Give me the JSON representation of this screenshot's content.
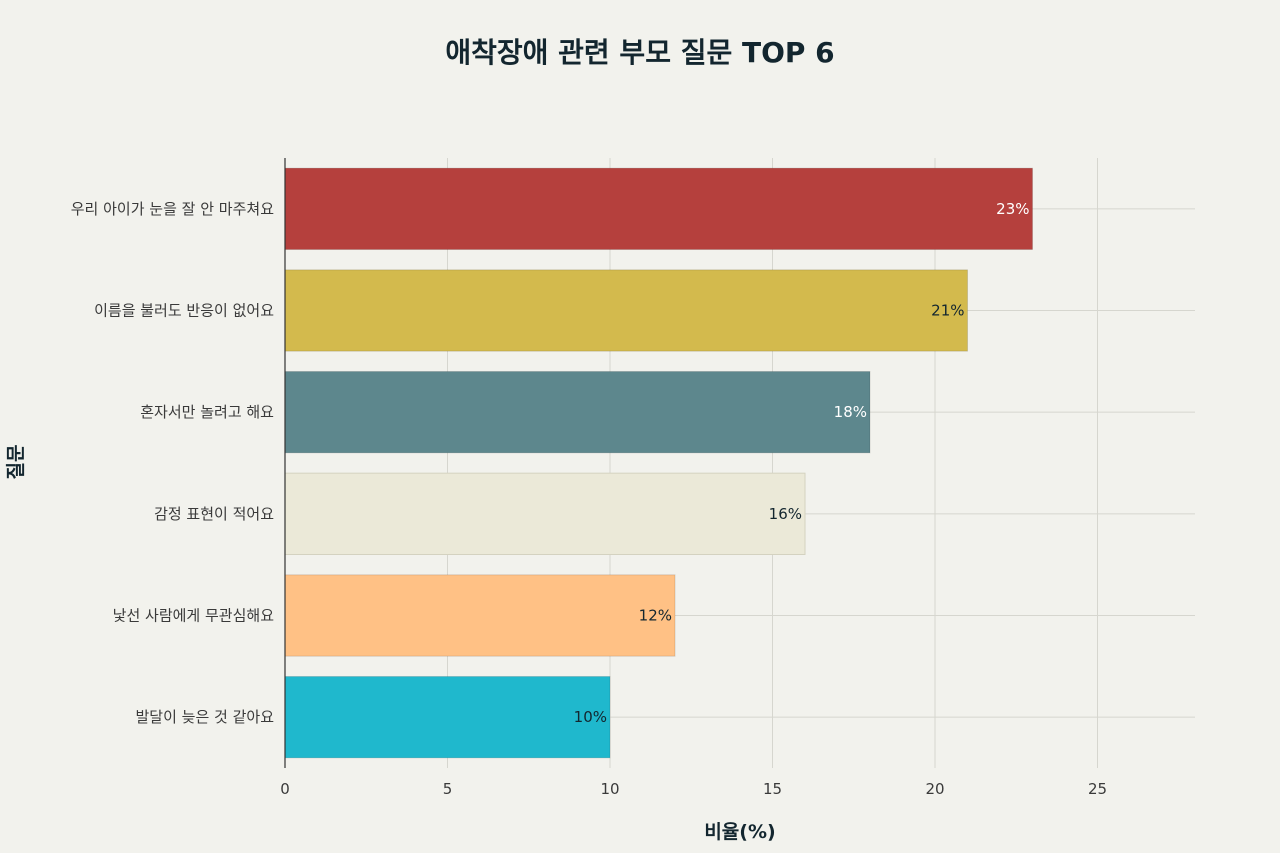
{
  "chart_data": {
    "type": "bar",
    "orientation": "horizontal",
    "title": "애착장애 관련 부모 질문 TOP 6",
    "xlabel": "비율(%)",
    "ylabel": "질문",
    "xlim": [
      0,
      28
    ],
    "xticks": [
      0,
      5,
      10,
      15,
      20,
      25
    ],
    "grid": true,
    "categories": [
      "우리 아이가 눈을 잘 안 마주쳐요",
      "이름을 불러도 반응이 없어요",
      "혼자서만 놀려고 해요",
      "감정 표현이 적어요",
      "낯선 사람에게 무관심해요",
      "발달이 늦은 것 같아요"
    ],
    "values": [
      23,
      21,
      18,
      16,
      12,
      10
    ],
    "data_labels": [
      "23%",
      "21%",
      "18%",
      "16%",
      "12%",
      "10%"
    ],
    "colors": [
      "#b5403d",
      "#d3ba4d",
      "#5d878d",
      "#ebe9d8",
      "#ffc185",
      "#1fb8cd"
    ],
    "label_colors": [
      "#ffffff",
      "#13262f",
      "#ffffff",
      "#13262f",
      "#13262f",
      "#13262f"
    ]
  }
}
